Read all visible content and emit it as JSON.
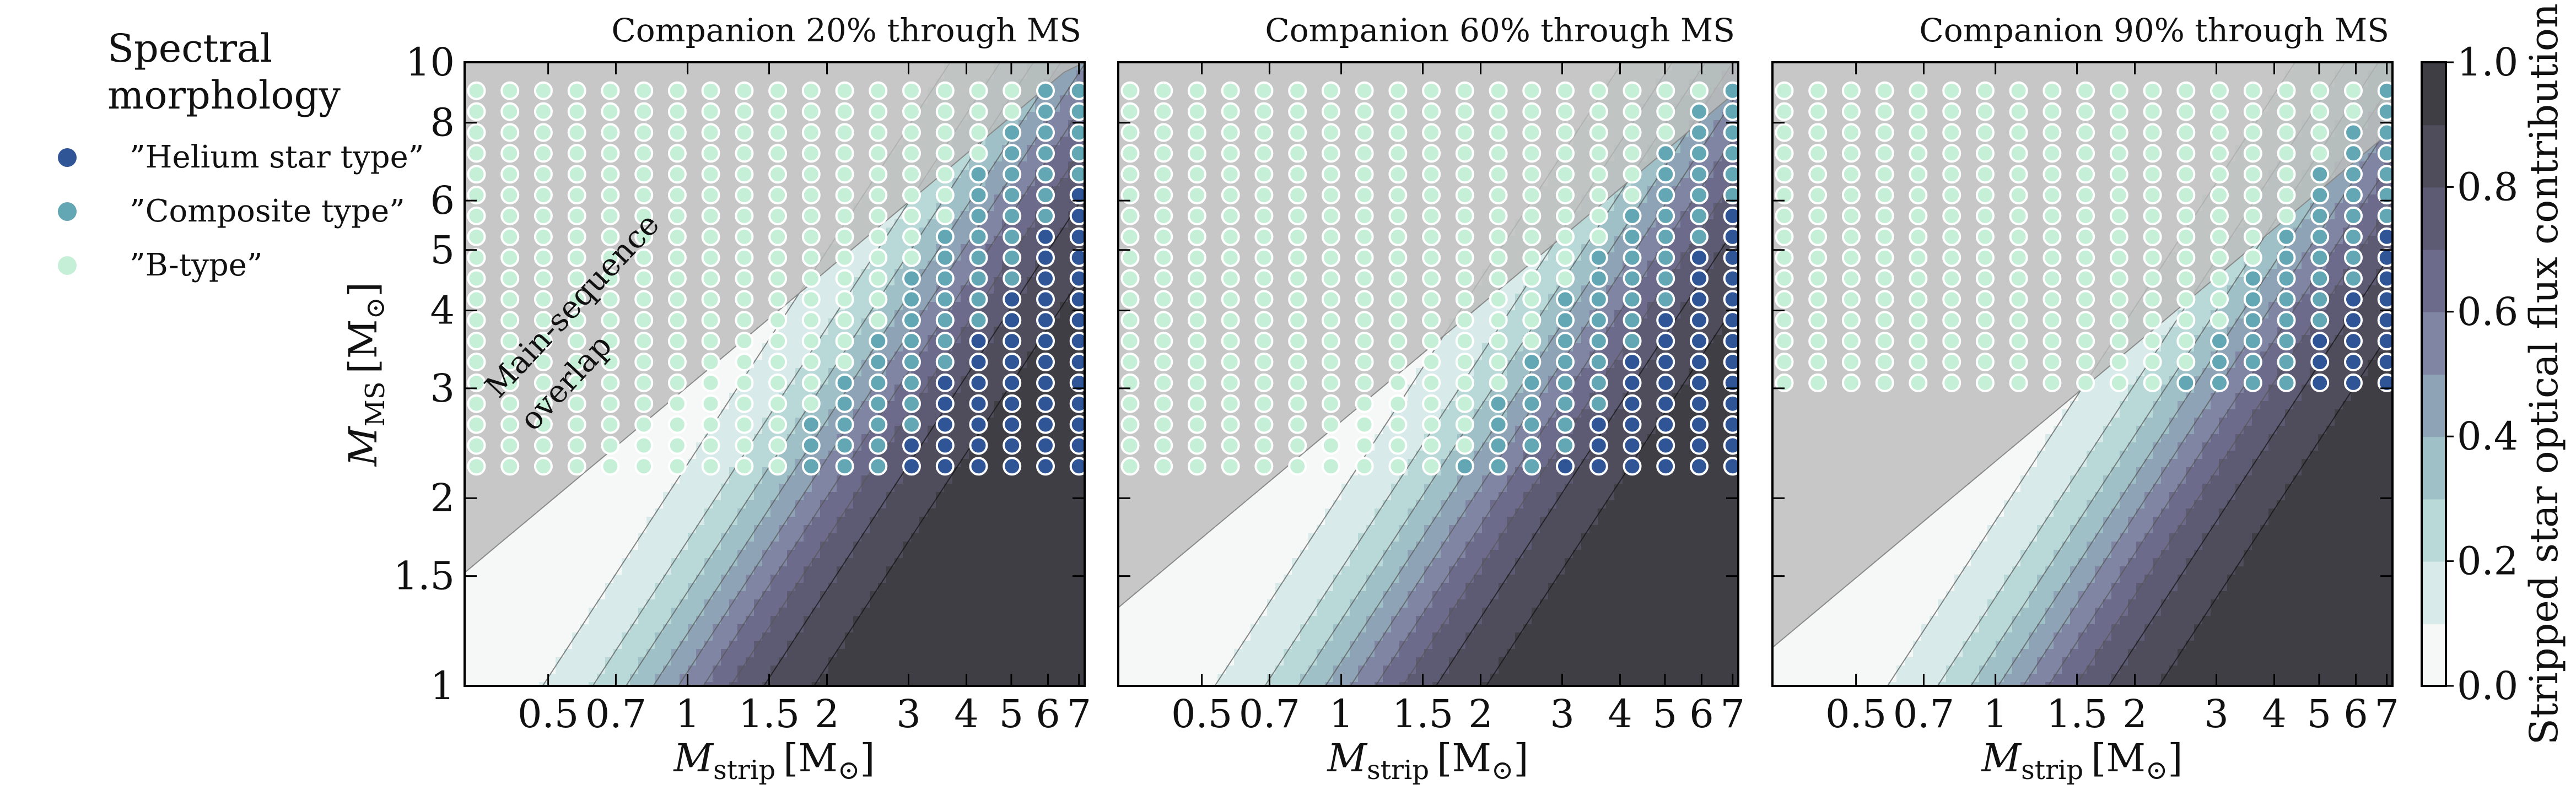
{
  "chart_data": {
    "type": "heatmap",
    "legend": {
      "title_lines": [
        "Spectral",
        "morphology"
      ],
      "entries": [
        {
          "label": "”Helium star type”",
          "color": "#2f5597"
        },
        {
          "label": "”Composite type”",
          "color": "#63a7b5"
        },
        {
          "label": "”B-type”",
          "color": "#c5efd7"
        }
      ],
      "placement": "left"
    },
    "colorbar": {
      "label": "Stripped star optical flux contribution",
      "range": [
        0.0,
        1.0
      ],
      "ticks": [
        "0.0",
        "0.2",
        "0.4",
        "0.6",
        "0.8",
        "1.0"
      ],
      "levels": [
        "#f6f8f7",
        "#d8ebea",
        "#b9d9d8",
        "#9fc0c6",
        "#8ea3b5",
        "#7f85a3",
        "#6c6b8b",
        "#5d5a73",
        "#4f4c5c",
        "#3f3e44"
      ]
    },
    "xaxis": {
      "label_main": "M",
      "label_sub": "strip",
      "label_unit": "[M",
      "scale": "log",
      "range": [
        0.33,
        7.2
      ],
      "ticks": [
        "0.5",
        "0.7",
        "1",
        "1.5",
        "2",
        "3",
        "4",
        "5",
        "6",
        "7"
      ]
    },
    "yaxis": {
      "label_main": "M",
      "label_sub": "MS",
      "label_unit": "[M",
      "scale": "log",
      "range": [
        1.0,
        10.0
      ],
      "ticks": [
        "1",
        "1.5",
        "2",
        "3",
        "4",
        "5",
        "6",
        "8",
        "10"
      ]
    },
    "panels": [
      {
        "title": "Companion 20% through MS",
        "ms_fraction": 0.2,
        "overlap_annotation": [
          "Main-sequence",
          "overlap"
        ]
      },
      {
        "title": "Companion 60% through MS",
        "ms_fraction": 0.6
      },
      {
        "title": "Companion 90% through MS",
        "ms_fraction": 0.9
      }
    ],
    "grid": false
  }
}
